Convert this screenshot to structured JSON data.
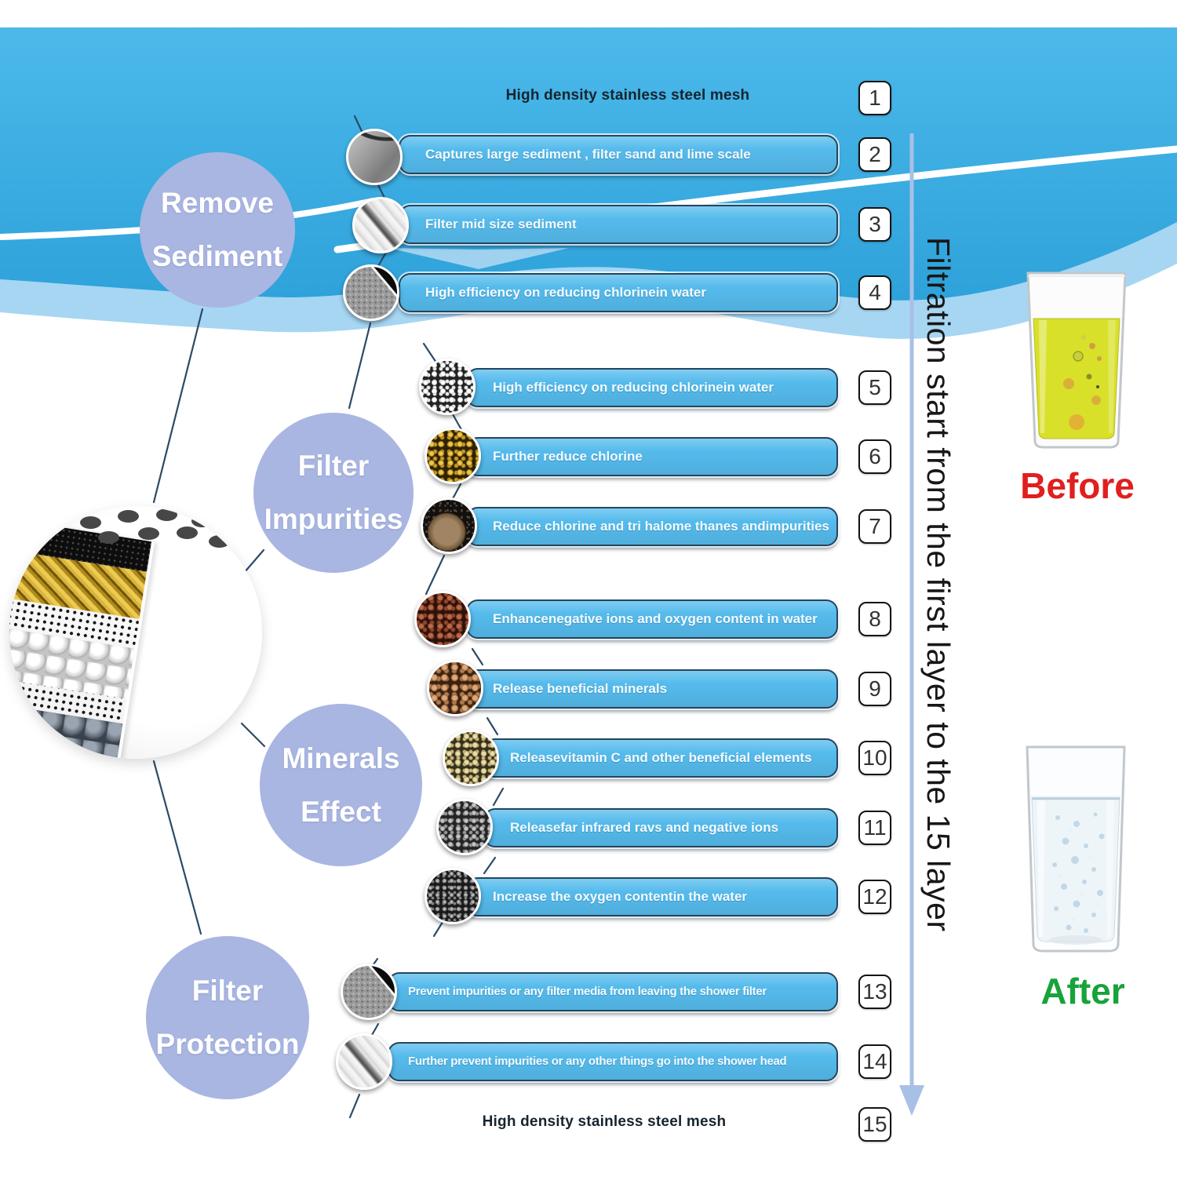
{
  "side_note": "Filtration start from the first layer to the 15 layer",
  "categories": [
    {
      "line1": "Remove",
      "line2": "Sediment"
    },
    {
      "line1": "Filter",
      "line2": "Impurities"
    },
    {
      "line1": "Minerals",
      "line2": "Effect"
    },
    {
      "line1": "Filter",
      "line2": "Protection"
    }
  ],
  "layers": [
    {
      "num": "1",
      "text": "High density stainless steel mesh",
      "thumb": null
    },
    {
      "num": "2",
      "text": "Captures large sediment , filter sand and lime scale",
      "thumb": "stainless-steel-plate"
    },
    {
      "num": "3",
      "text": "Filter mid size sediment",
      "thumb": "pp-cotton-fabric"
    },
    {
      "num": "4",
      "text": "High efficiency on reducing chlorinein water",
      "thumb": "kdf-mesh"
    },
    {
      "num": "5",
      "text": "High efficiency on reducing chlorinein water",
      "thumb": "calcium-sulfite-granules"
    },
    {
      "num": "6",
      "text": "Further reduce chlorine",
      "thumb": "kdf55-gold-granules"
    },
    {
      "num": "7",
      "text": "Reduce chlorine and tri halome thanes andimpurities",
      "thumb": "activated-carbon"
    },
    {
      "num": "8",
      "text": "Enhancenegative ions and oxygen content in water",
      "thumb": "maifan-stone-beads"
    },
    {
      "num": "9",
      "text": "Release beneficial minerals",
      "thumb": "mineral-beads"
    },
    {
      "num": "10",
      "text": "Releasevitamin C and other beneficial elements",
      "thumb": "vitamin-c-granules"
    },
    {
      "num": "11",
      "text": "Releasefar infrared ravs and negative ions",
      "thumb": "far-infrared-granules"
    },
    {
      "num": "12",
      "text": "Increase the oxygen contentin the water",
      "thumb": "oxygen-granules"
    },
    {
      "num": "13",
      "text": "Prevent impurities or any filter media from leaving the shower filter",
      "thumb": "kdf-mesh"
    },
    {
      "num": "14",
      "text": "Further prevent impurities or any other things go into the shower head",
      "thumb": "pp-cotton-fabric"
    },
    {
      "num": "15",
      "text": "High density stainless steel mesh",
      "thumb": null
    }
  ],
  "comparison": {
    "before_label": "Before",
    "after_label": "After"
  },
  "colors": {
    "header_blue_top": "#4cb9ea",
    "header_blue_bottom": "#2ea2da",
    "pale_band_blue": "#a6d6f2",
    "bar_blue": "#55bbec",
    "bar_border_navy": "#24455f",
    "circle_purple": "#a9b6e2",
    "connector_navy": "#2c4a66",
    "arrow_blue": "#a9c0e6",
    "before_red": "#e01f1f",
    "after_green": "#17a33a",
    "before_water_yellow": "#d9e02a",
    "after_water_clear": "#eef5f9"
  }
}
